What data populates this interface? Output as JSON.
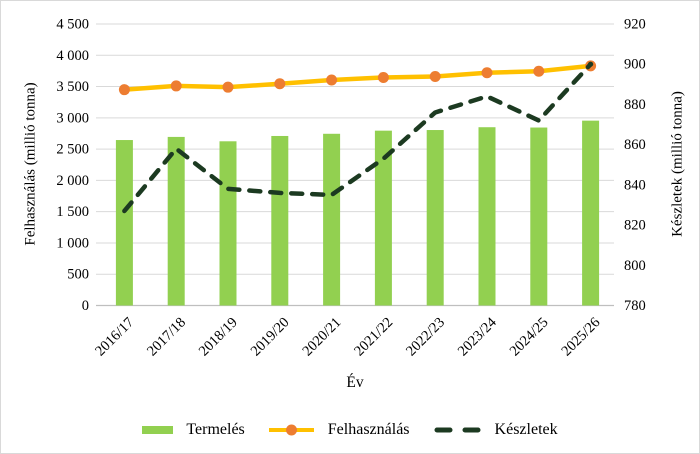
{
  "chart_data": {
    "type": "bar",
    "subtype": "combo-bar-and-lines",
    "title": "",
    "xlabel": "Év",
    "ylabel_left": "Felhasználás (millió tonna)",
    "ylabel_right": "Készletek (millió tonna)",
    "grid": "horizontal",
    "legend_position": "bottom",
    "categories": [
      "2016/17",
      "2017/18",
      "2018/19",
      "2019/20",
      "2020/21",
      "2021/22",
      "2022/23",
      "2023/24",
      "2024/25",
      "2025/26"
    ],
    "series": [
      {
        "name": "Termelés",
        "type": "bar",
        "axis": "left",
        "color": "#92D050",
        "values": [
          2645,
          2695,
          2625,
          2710,
          2745,
          2795,
          2805,
          2850,
          2845,
          2955
        ]
      },
      {
        "name": "Felhasználás",
        "type": "line",
        "axis": "left",
        "color": "#FFC000",
        "marker": "circle",
        "marker_color": "#ED7D31",
        "values": [
          3450,
          3510,
          3490,
          3545,
          3605,
          3645,
          3660,
          3720,
          3745,
          3830
        ]
      },
      {
        "name": "Készletek",
        "type": "line",
        "dash": "dashed",
        "axis": "right",
        "color": "#1C3A21",
        "values": [
          827,
          858,
          838,
          836,
          835,
          853,
          876,
          884,
          872,
          900
        ]
      }
    ],
    "axis_left": {
      "min": 0,
      "max": 4500,
      "step": 500,
      "tick_labels": [
        "0",
        "500",
        "1 000",
        "1 500",
        "2 000",
        "2 500",
        "3 000",
        "3 500",
        "4 000",
        "4 500"
      ]
    },
    "axis_right": {
      "min": 780,
      "max": 920,
      "step": 20,
      "tick_labels": [
        "780",
        "800",
        "820",
        "840",
        "860",
        "880",
        "900",
        "920"
      ]
    },
    "colors": {
      "gridline": "#D9D9D9",
      "axis_line": "#BFBFBF",
      "text": "#000000",
      "background": "#FFFFFF"
    }
  }
}
